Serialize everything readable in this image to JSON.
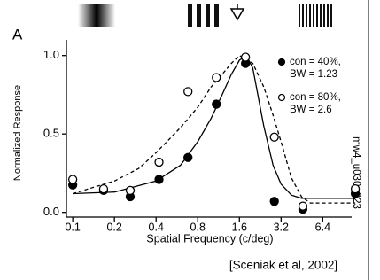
{
  "chart_data": {
    "type": "scatter",
    "panel_label": "A",
    "x_label": "Spatial Frequency (c/deg)",
    "y_label": "Normalized Response",
    "side_label": "mw4_u030_023",
    "citation": "[Sceniak et al, 2002]",
    "log_x": true,
    "xlim": [
      0.09,
      12
    ],
    "ylim": [
      -0.03,
      1.1
    ],
    "xticks": [
      0.1,
      0.2,
      0.4,
      0.8,
      1.6,
      3.2,
      6.4
    ],
    "yticks": [
      {
        "value": 0,
        "label": "0.0"
      },
      {
        "value": 0.5,
        "label": "0.5"
      },
      {
        "value": 1,
        "label": "1.0"
      }
    ],
    "series": [
      {
        "name": "con = 40%,",
        "subname": "BW = 1.23",
        "color": "#000000",
        "filled": true,
        "dash": false,
        "x": [
          0.1,
          0.167,
          0.26,
          0.42,
          0.68,
          1.09,
          1.77,
          2.86,
          4.6,
          11
        ],
        "values": [
          0.175,
          0.14,
          0.1,
          0.21,
          0.35,
          0.69,
          0.95,
          0.07,
          0.02,
          0.12
        ],
        "fit_x": [
          0.1,
          0.2,
          0.4,
          0.6,
          0.8,
          1.0,
          1.2,
          1.4,
          1.6,
          1.8,
          2.0,
          2.4,
          2.8,
          3.2,
          3.8,
          4.5,
          11
        ],
        "fit_values": [
          0.12,
          0.13,
          0.2,
          0.3,
          0.45,
          0.6,
          0.75,
          0.88,
          0.97,
          1.0,
          0.92,
          0.55,
          0.3,
          0.18,
          0.11,
          0.09,
          0.09
        ]
      },
      {
        "name": "con = 80%,",
        "subname": "BW = 2.6",
        "color": "#000000",
        "filled": false,
        "dash": true,
        "x": [
          0.1,
          0.167,
          0.26,
          0.42,
          0.68,
          1.09,
          1.77,
          2.86,
          4.6,
          11
        ],
        "values": [
          0.21,
          0.15,
          0.14,
          0.32,
          0.77,
          0.86,
          0.99,
          0.48,
          0.04,
          0.15
        ],
        "fit_x": [
          0.1,
          0.2,
          0.3,
          0.4,
          0.6,
          0.8,
          1.0,
          1.2,
          1.4,
          1.6,
          2.0,
          2.4,
          2.8,
          3.2,
          3.8,
          4.5,
          5.2,
          11
        ],
        "fit_values": [
          0.12,
          0.2,
          0.28,
          0.38,
          0.54,
          0.67,
          0.8,
          0.88,
          0.95,
          1.0,
          0.95,
          0.8,
          0.62,
          0.45,
          0.22,
          0.1,
          0.06,
          0.06
        ]
      }
    ]
  }
}
